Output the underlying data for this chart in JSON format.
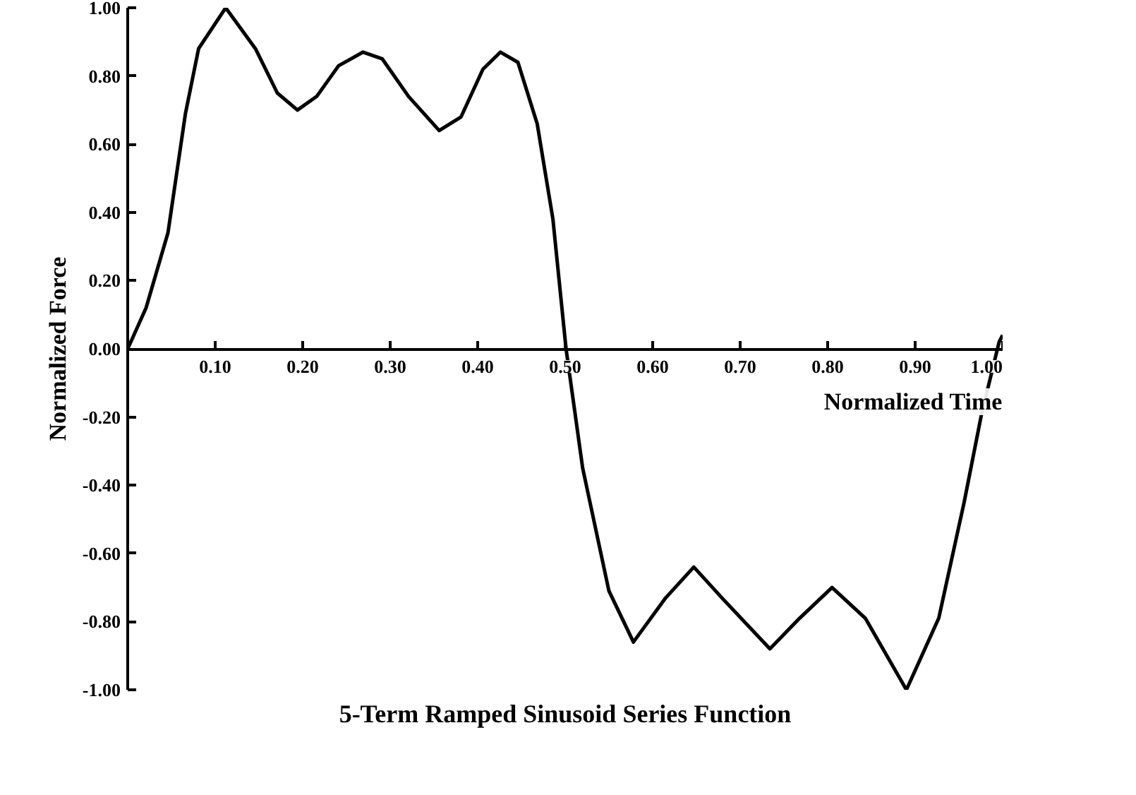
{
  "chart_data": {
    "type": "line",
    "title": "5-Term Ramped Sinusoid Series Function",
    "xlabel": "Normalized Time",
    "ylabel": "Normalized Force",
    "x": [
      0,
      0.021,
      0.046,
      0.066,
      0.081,
      0.112,
      0.146,
      0.171,
      0.194,
      0.216,
      0.241,
      0.269,
      0.291,
      0.321,
      0.356,
      0.381,
      0.406,
      0.426,
      0.446,
      0.468,
      0.486,
      0.501,
      0.52,
      0.55,
      0.578,
      0.615,
      0.647,
      0.679,
      0.734,
      0.768,
      0.805,
      0.843,
      0.89,
      0.927,
      0.956,
      0.976,
      0.996,
      1.0
    ],
    "series": [
      {
        "color": "#000000",
        "values": [
          0,
          0.12,
          0.34,
          0.69,
          0.88,
          1.0,
          0.88,
          0.75,
          0.7,
          0.74,
          0.83,
          0.87,
          0.85,
          0.74,
          0.64,
          0.68,
          0.82,
          0.87,
          0.84,
          0.66,
          0.38,
          0,
          -0.35,
          -0.71,
          -0.86,
          -0.73,
          -0.64,
          -0.73,
          -0.88,
          -0.79,
          -0.7,
          -0.79,
          -1.0,
          -0.79,
          -0.45,
          -0.19,
          0.02,
          0.04
        ]
      }
    ],
    "xlim": [
      0,
      1
    ],
    "ylim": [
      -1,
      1
    ],
    "xticks": [
      {
        "value": 0.1,
        "label": "0.10"
      },
      {
        "value": 0.2,
        "label": "0.20"
      },
      {
        "value": 0.3,
        "label": "0.30"
      },
      {
        "value": 0.4,
        "label": "0.40"
      },
      {
        "value": 0.5,
        "label": "0.50"
      },
      {
        "value": 0.6,
        "label": "0.60"
      },
      {
        "value": 0.7,
        "label": "0.70"
      },
      {
        "value": 0.8,
        "label": "0.80"
      },
      {
        "value": 0.9,
        "label": "0.90"
      },
      {
        "value": 1.0,
        "label": "1.00"
      }
    ],
    "yticks": [
      {
        "value": -1,
        "label": "-1.00"
      },
      {
        "value": -0.8,
        "label": "-0.80"
      },
      {
        "value": -0.6,
        "label": "-0.60"
      },
      {
        "value": -0.4,
        "label": "-0.40"
      },
      {
        "value": -0.2,
        "label": "-0.20"
      },
      {
        "value": 0,
        "label": "0.00"
      },
      {
        "value": 0.2,
        "label": "0.20"
      },
      {
        "value": 0.4,
        "label": "0.40"
      },
      {
        "value": 0.6,
        "label": "0.60"
      },
      {
        "value": 0.8,
        "label": "0.80"
      },
      {
        "value": 1.0,
        "label": "1.00"
      }
    ],
    "grid": false,
    "marker": "none",
    "line_style": "solid"
  }
}
